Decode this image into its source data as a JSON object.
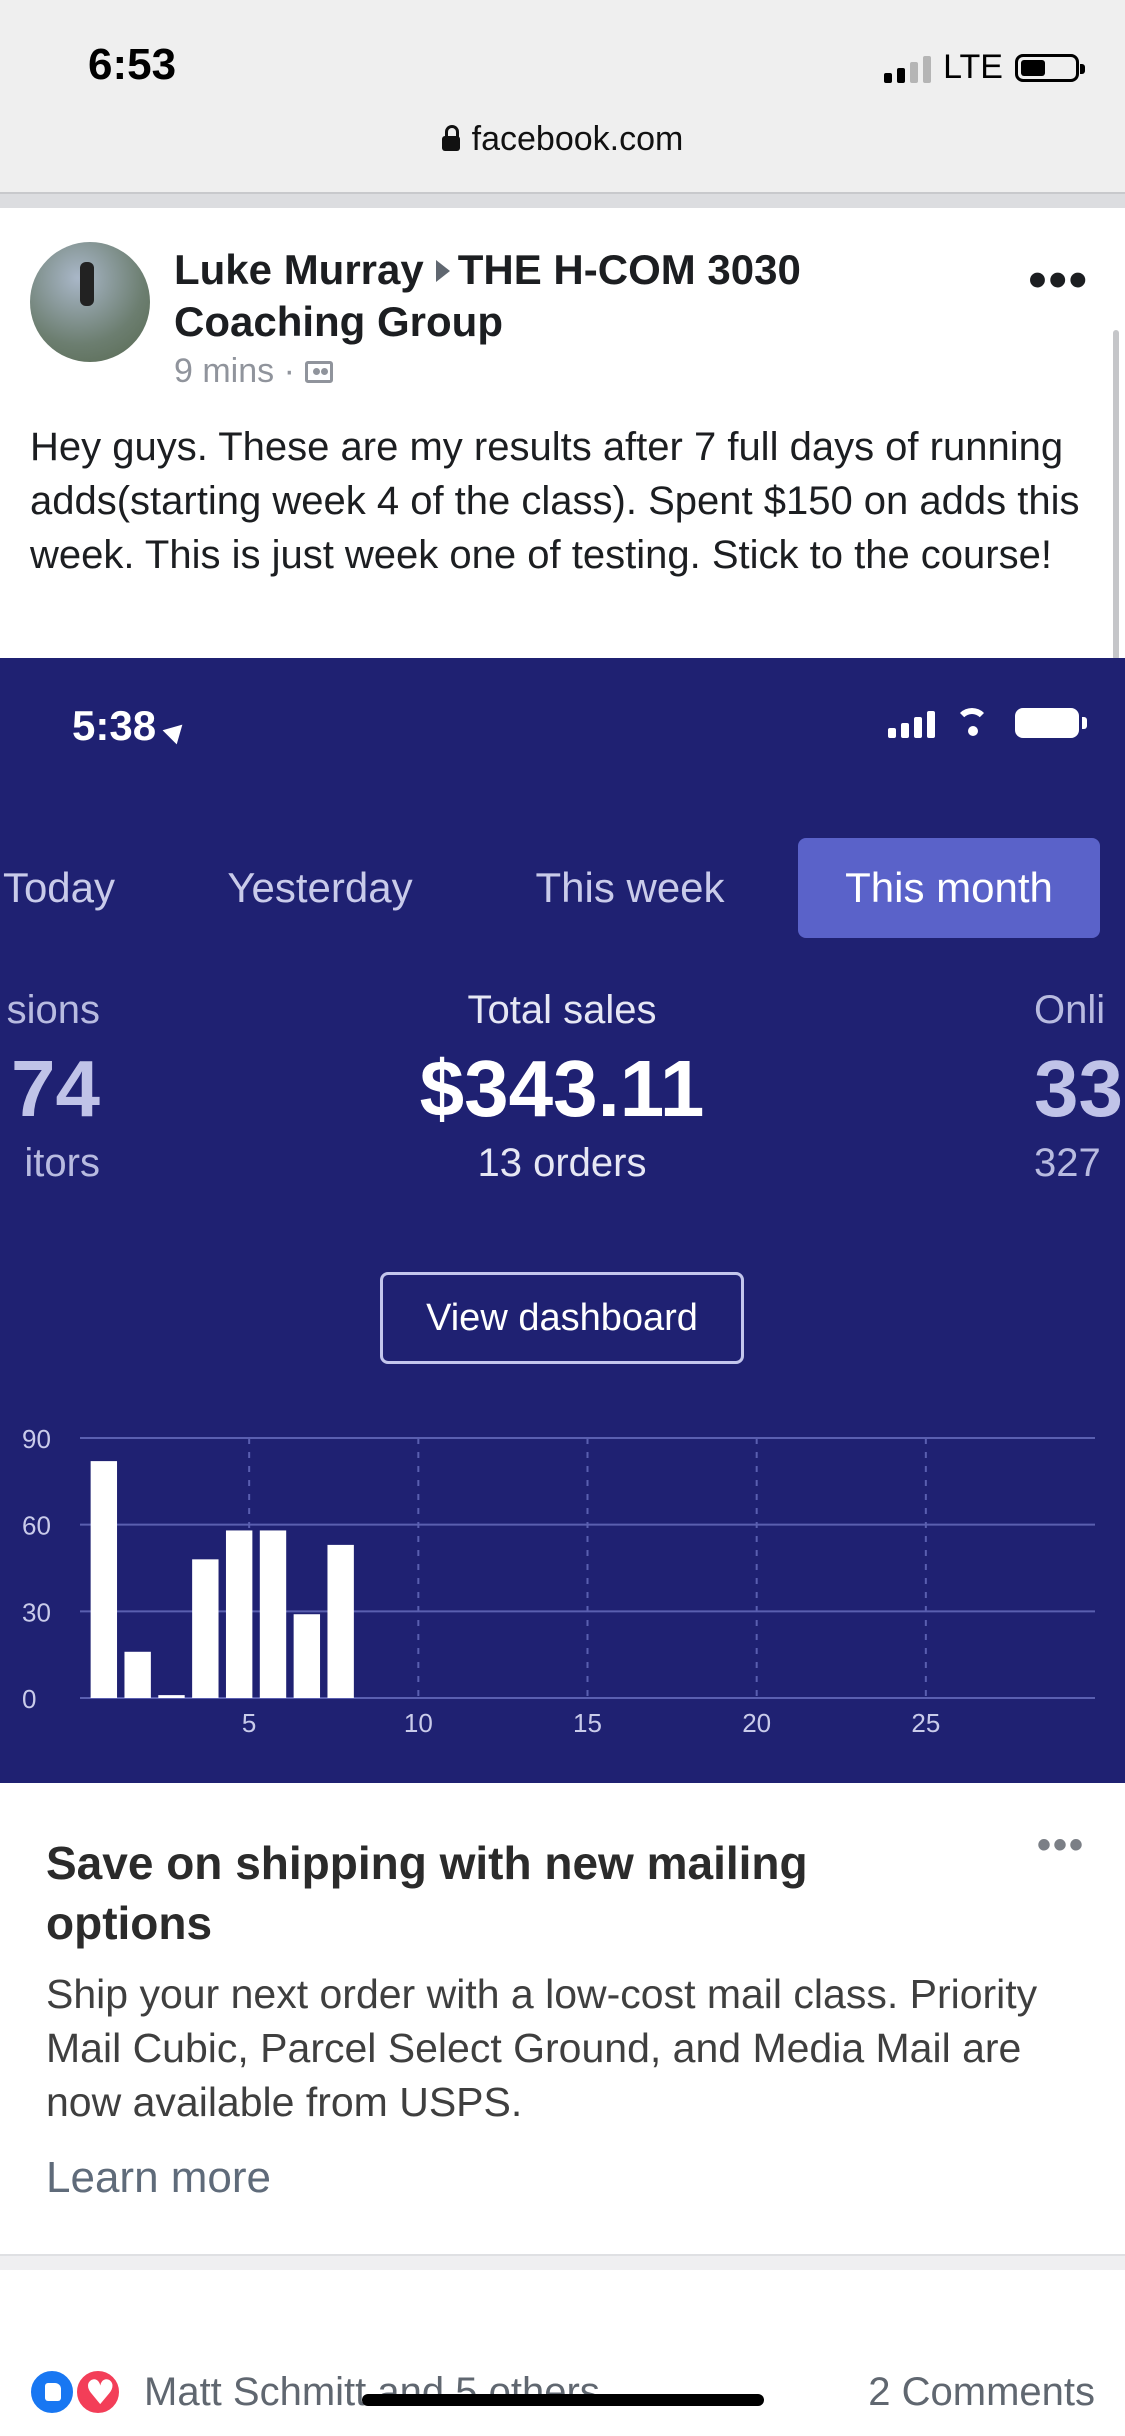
{
  "status_bar": {
    "time": "6:53",
    "network": "LTE",
    "url": "facebook.com"
  },
  "post": {
    "author": "Luke Murray",
    "group": "THE H-COM 3030 Coaching Group",
    "timestamp": "9 mins ·",
    "text": "Hey guys. These are my results after 7 full days of running adds(starting week 4 of the class). Spent $150 on adds this week. This is just week one of testing. Stick to the course!"
  },
  "screenshot": {
    "time": "5:38",
    "periods": [
      {
        "label": "Today",
        "active": false
      },
      {
        "label": "Yesterday",
        "active": false
      },
      {
        "label": "This week",
        "active": false
      },
      {
        "label": "This month",
        "active": true
      }
    ],
    "metrics": {
      "left": {
        "label": "sions",
        "value": "74",
        "sub": "itors"
      },
      "center": {
        "label": "Total sales",
        "value": "$343.11",
        "sub": "13 orders"
      },
      "right": {
        "label": "Onli",
        "value": "33",
        "sub": "327"
      }
    },
    "view_dashboard": "View dashboard"
  },
  "chart_data": {
    "type": "bar",
    "x": [
      1,
      2,
      3,
      4,
      5,
      6,
      7,
      8
    ],
    "values": [
      82,
      16,
      1,
      48,
      58,
      58,
      29,
      53
    ],
    "x_ticks": [
      5,
      10,
      15,
      20,
      25
    ],
    "y_ticks": [
      0,
      30,
      60,
      90
    ],
    "ylim": [
      0,
      90
    ],
    "xlim": [
      0,
      30
    ],
    "grid": true,
    "bar_color": "#ffffff"
  },
  "ad": {
    "title": "Save on shipping with new mailing options",
    "body": "Ship your next order with a low-cost mail class. Priority Mail Cubic, Parcel Select Ground, and Media Mail are now available from USPS.",
    "link": "Learn more"
  },
  "reactions": {
    "names": "Matt Schmitt and 5 others",
    "comments": "2 Comments"
  },
  "colors": {
    "dashboard_bg": "#1f2172",
    "active_tab": "#5a62c9",
    "like_blue": "#1877f2",
    "love_red": "#f33e58"
  }
}
